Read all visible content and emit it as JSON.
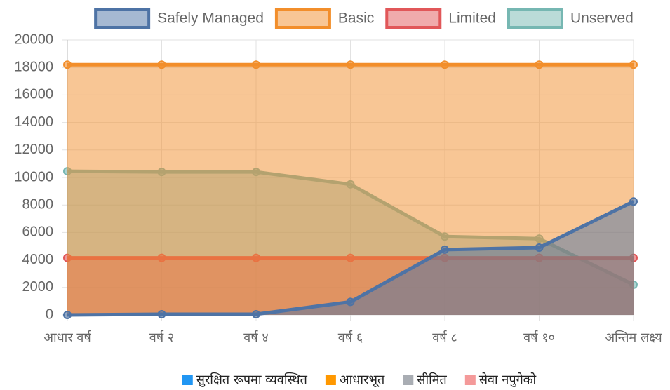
{
  "chart_data": {
    "type": "area",
    "categories": [
      "आधार वर्ष",
      "वर्ष २",
      "वर्ष ४",
      "वर्ष ६",
      "वर्ष ८",
      "वर्ष १०",
      "अन्तिम लक्ष्य"
    ],
    "series": [
      {
        "name": "Safely Managed",
        "color": "#4e73a5",
        "values": [
          0,
          50,
          50,
          950,
          4750,
          4900,
          8250
        ]
      },
      {
        "name": "Basic",
        "color": "#f28e2b",
        "values": [
          18200,
          18200,
          18200,
          18200,
          18200,
          18200,
          18200
        ]
      },
      {
        "name": "Limited",
        "color": "#e15759",
        "values": [
          4150,
          4150,
          4150,
          4150,
          4150,
          4150,
          4150
        ]
      },
      {
        "name": "Unserved",
        "color": "#76b7b2",
        "values": [
          10450,
          10400,
          10400,
          9500,
          5700,
          5550,
          2200
        ]
      }
    ],
    "ylim": [
      0,
      20000
    ],
    "yticks": [
      0,
      2000,
      4000,
      6000,
      8000,
      10000,
      12000,
      14000,
      16000,
      18000,
      20000
    ],
    "grid": true,
    "legend": "top"
  },
  "footer_legend": [
    {
      "name": "सुरक्षित रूपमा व्यवस्थित",
      "color": "#2196f3"
    },
    {
      "name": "आधारभूत",
      "color": "#ff9800"
    },
    {
      "name": "सीमित",
      "color": "#a9adb3"
    },
    {
      "name": "सेवा नपुगेको",
      "color": "#f49a9a"
    }
  ]
}
